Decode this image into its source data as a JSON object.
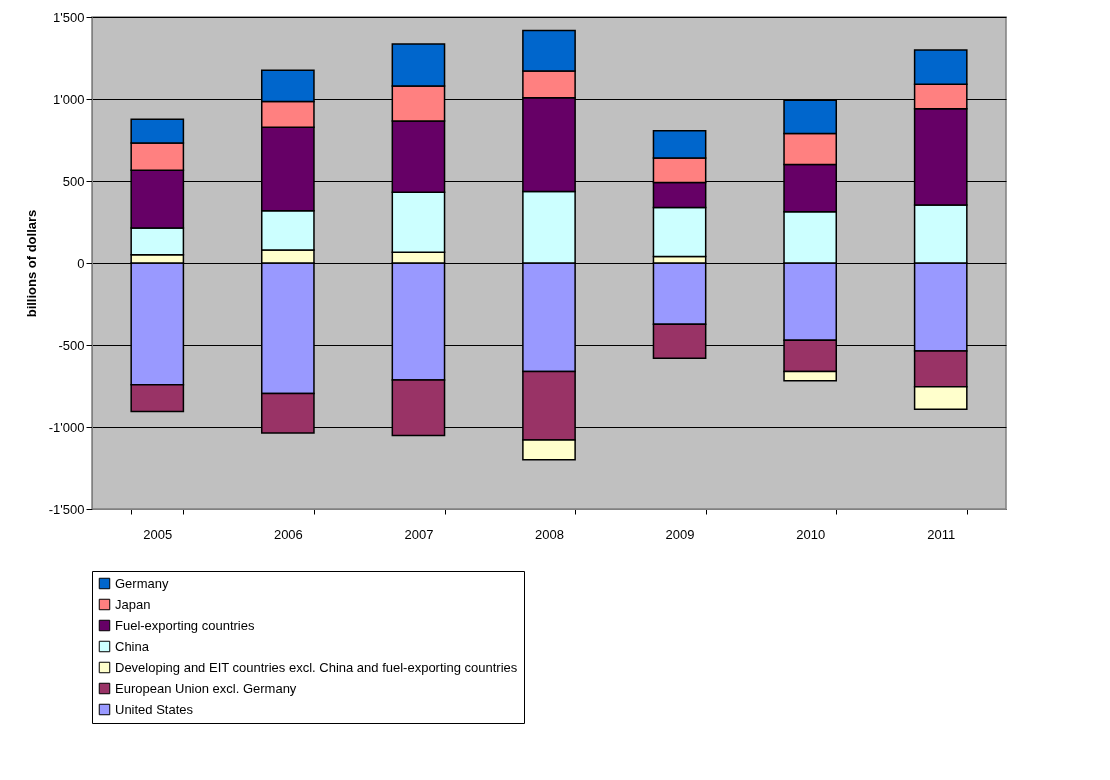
{
  "chart_data": {
    "type": "bar",
    "stacked": true,
    "ylabel": "billions of dollars",
    "categories": [
      "2005",
      "2006",
      "2007",
      "2008",
      "2009",
      "2010",
      "2011"
    ],
    "series": [
      {
        "name": "United States",
        "color": "#9999ff",
        "values": [
          -743,
          -795,
          -714,
          -661,
          -374,
          -471,
          -536
        ]
      },
      {
        "name": "European Union excl. Germany",
        "color": "#993366",
        "values": [
          -162,
          -241,
          -338,
          -419,
          -207,
          -190,
          -219
        ]
      },
      {
        "name": "Developing and EIT countries excl. China and fuel-exporting countries",
        "color": "#ffffcc",
        "values": [
          50,
          80,
          66,
          -120,
          40,
          -57,
          -137
        ]
      },
      {
        "name": "China",
        "color": "#ccffff",
        "values": [
          164,
          238,
          366,
          436,
          299,
          313,
          353
        ]
      },
      {
        "name": "Fuel-exporting countries",
        "color": "#660066",
        "values": [
          352,
          509,
          434,
          571,
          152,
          287,
          588
        ]
      },
      {
        "name": "Japan",
        "color": "#ff8080",
        "values": [
          166,
          157,
          214,
          164,
          149,
          189,
          149
        ]
      },
      {
        "name": "Germany",
        "color": "#0066cc",
        "values": [
          145,
          191,
          256,
          246,
          166,
          204,
          209
        ]
      }
    ],
    "ylim": [
      -1500,
      1500
    ],
    "yticks": [
      {
        "value": -1500,
        "label": "-1'500"
      },
      {
        "value": -1000,
        "label": "-1'000"
      },
      {
        "value": -500,
        "label": "-500"
      },
      0,
      500,
      {
        "value": 1000,
        "label": "1'000"
      },
      {
        "value": 1500,
        "label": "1'500"
      }
    ],
    "grid": "y",
    "legend": "bottom"
  }
}
